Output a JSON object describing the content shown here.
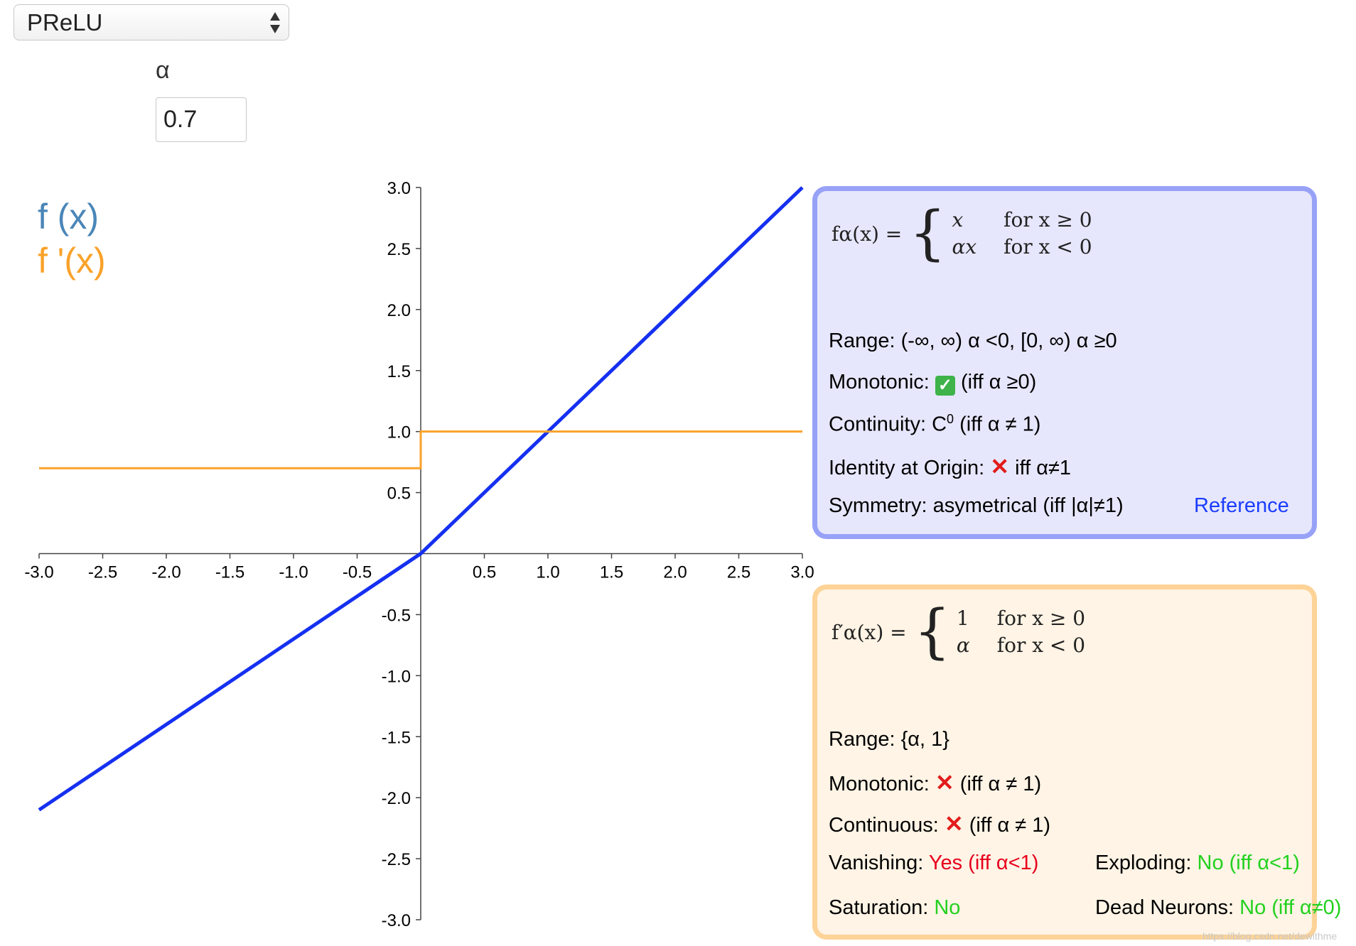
{
  "selector": {
    "value": "PReLU"
  },
  "param": {
    "label": "α",
    "value": "0.7"
  },
  "legend": {
    "f": "f (x)",
    "fprime": "f '(x)"
  },
  "colors": {
    "f": "#1530f0",
    "fprime": "#f9a229",
    "legend_f": "#4a86b8",
    "box_f_bg": "#e6e7fc",
    "box_d_bg": "#fff4e5"
  },
  "function_box": {
    "lhs": "fα(x) =",
    "cases": [
      {
        "expr": "x",
        "cond": "for x ≥ 0"
      },
      {
        "expr": "αx",
        "cond": "for x < 0"
      }
    ],
    "range_label": "Range: ",
    "range_value": "(-∞, ∞) α <0, [0, ∞) α ≥0",
    "monotonic_label": "Monotonic: ",
    "monotonic_icon": "check-icon",
    "monotonic_note": " (iff α ≥0)",
    "continuity_label": "Continuity: C",
    "continuity_sup": "0",
    "continuity_note": " (iff α ≠ 1)",
    "identity_label": "Identity at Origin: ",
    "identity_icon": "cross-icon",
    "identity_note": " iff α≠1",
    "symmetry_label": "Symmetry: ",
    "symmetry_value": "asymetrical (iff |α|≠1)",
    "reference_link": "Reference"
  },
  "derivative_box": {
    "lhs": "f′α(x) =",
    "cases": [
      {
        "expr": "1",
        "cond": "for x ≥ 0"
      },
      {
        "expr": "α",
        "cond": "for x < 0"
      }
    ],
    "range_label": "Range: ",
    "range_value": "{α, 1}",
    "monotonic_label": "Monotonic: ",
    "monotonic_icon": "cross-icon",
    "monotonic_note": " (iff α ≠ 1)",
    "continuous_label": "Continuous: ",
    "continuous_icon": "cross-icon",
    "continuous_note": " (iff α ≠ 1)",
    "vanishing_label": "Vanishing: ",
    "vanishing_value": "Yes (iff α<1)",
    "exploding_label": "Exploding: ",
    "exploding_value": "No (iff α<1)",
    "saturation_label": "Saturation: ",
    "saturation_value": "No",
    "dead_label": "Dead Neurons: ",
    "dead_value": "No (iff α≠0)"
  },
  "watermark": "https://blog.csdn.net/dewithme",
  "chart_data": {
    "type": "line",
    "xlim": [
      -3.0,
      3.0
    ],
    "ylim": [
      -3.0,
      3.0
    ],
    "x_ticks": [
      "-3.0",
      "-2.5",
      "-2.0",
      "-1.5",
      "-1.0",
      "-0.5",
      "0.5",
      "1.0",
      "1.5",
      "2.0",
      "2.5",
      "3.0"
    ],
    "y_ticks": [
      "3.0",
      "2.5",
      "2.0",
      "1.5",
      "1.0",
      "0.5",
      "-0.5",
      "-1.0",
      "-1.5",
      "-2.0",
      "-2.5",
      "-3.0"
    ],
    "series": [
      {
        "name": "f (x)",
        "color": "#1530f0",
        "x": [
          -3.0,
          0.0,
          3.0
        ],
        "y": [
          -2.1,
          0.0,
          3.0
        ]
      },
      {
        "name": "f '(x)",
        "color": "#f9a229",
        "x": [
          -3.0,
          0.0,
          0.0,
          3.0
        ],
        "y": [
          0.7,
          0.7,
          1.0,
          1.0
        ]
      }
    ]
  }
}
